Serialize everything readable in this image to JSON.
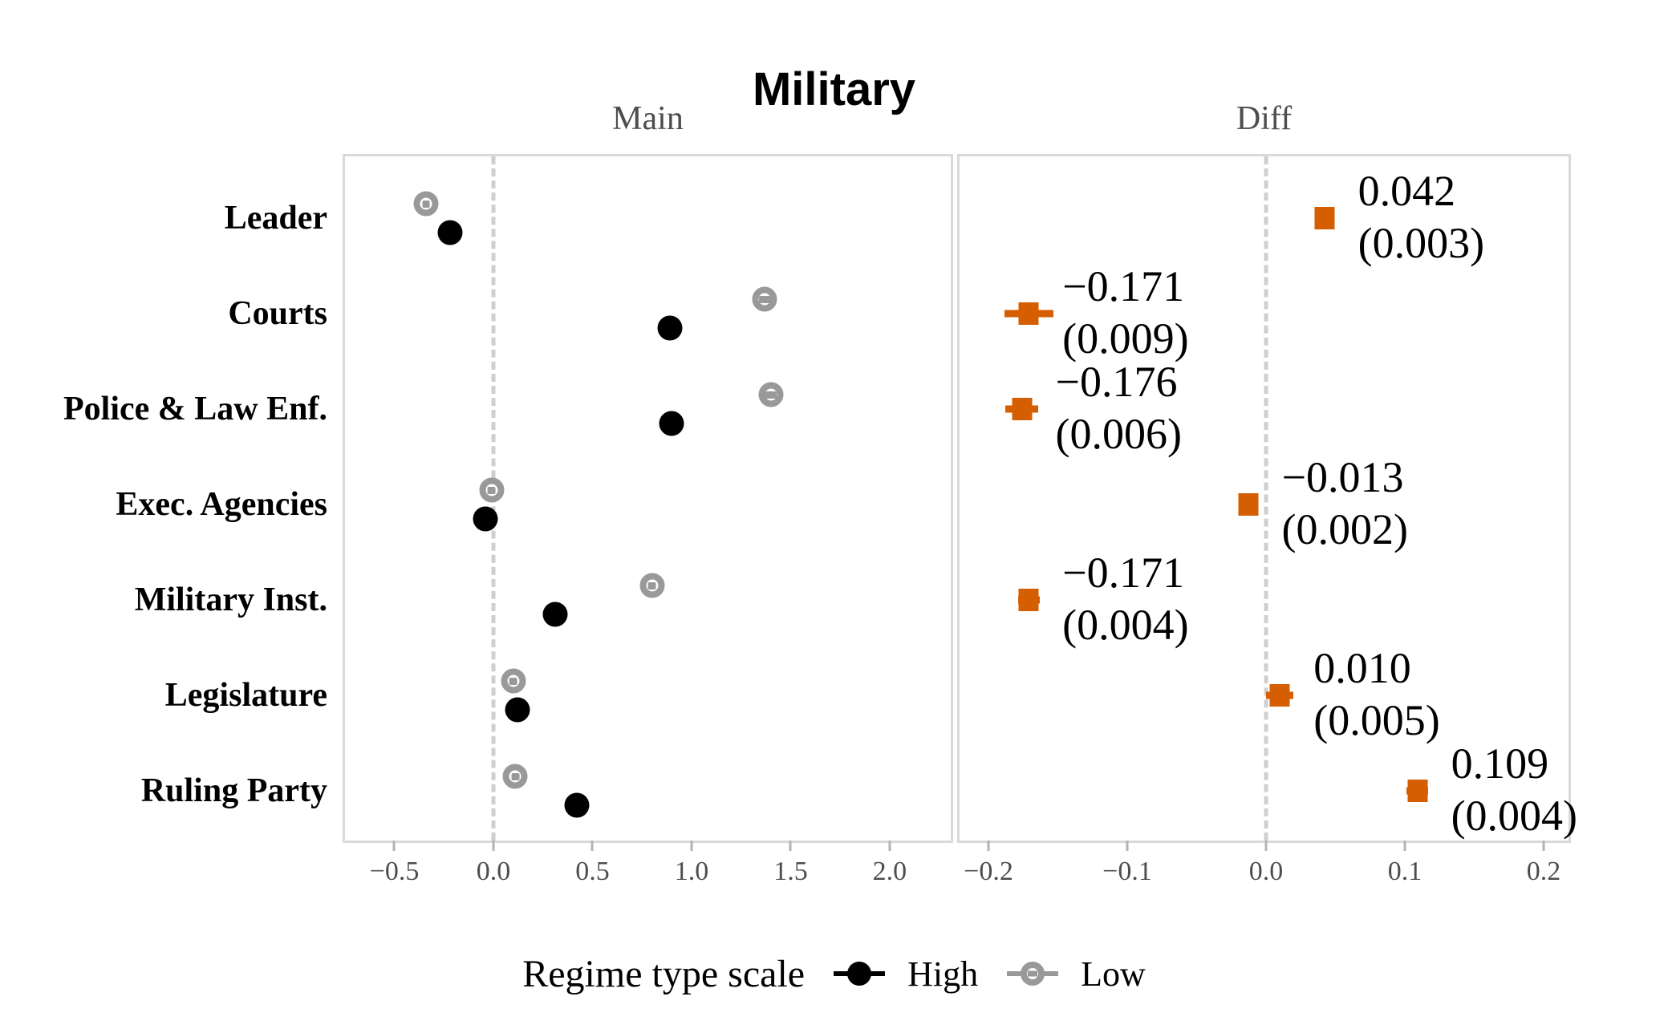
{
  "title": "Military",
  "panels": {
    "main": {
      "facet_label": "Main"
    },
    "diff": {
      "facet_label": "Diff"
    }
  },
  "legend": {
    "title": "Regime type scale",
    "items": [
      {
        "name": "high",
        "label": "High",
        "color": "#000000",
        "style": "filled-circle"
      },
      {
        "name": "low",
        "label": "Low",
        "color": "#999999",
        "style": "open-circle"
      }
    ]
  },
  "colors": {
    "high_point": "#000000",
    "low_point": "#999999",
    "diff_marker": "#d55e00",
    "panel_border": "#d9d9d9",
    "zero_line": "#cfcfcf",
    "facet_text": "#4d4d4d",
    "tick_text": "#4d4d4d"
  },
  "chart_data": {
    "type": "scatter",
    "title": "Military",
    "facets": [
      "Main",
      "Diff"
    ],
    "categories": [
      "Leader",
      "Courts",
      "Police & Law Enf.",
      "Exec. Agencies",
      "Military Inst.",
      "Legislature",
      "Ruling Party"
    ],
    "legend_position": "bottom",
    "main": {
      "xlim": [
        -0.749,
        2.308
      ],
      "zero_line": 0.0,
      "ticks": {
        "values": [
          -0.5,
          0.0,
          0.5,
          1.0,
          1.5,
          2.0
        ],
        "labels": [
          "−0.5",
          "0.0",
          "0.5",
          "1.0",
          "1.5",
          "2.0"
        ]
      },
      "series": [
        {
          "name": "High",
          "color": "#000000",
          "values": [
            -0.22,
            0.89,
            0.9,
            -0.04,
            0.31,
            0.12,
            0.42
          ],
          "ci_half_width": [
            0.02,
            0.02,
            0.02,
            0.02,
            0.02,
            0.02,
            0.02
          ]
        },
        {
          "name": "Low",
          "color": "#999999",
          "values": [
            -0.34,
            1.37,
            1.4,
            -0.01,
            0.8,
            0.1,
            0.11
          ],
          "ci_half_width": [
            0.02,
            0.05,
            0.05,
            0.02,
            0.02,
            0.02,
            0.02
          ]
        }
      ]
    },
    "diff": {
      "xlim": [
        -0.2208,
        0.2179
      ],
      "zero_line": 0.0,
      "ticks": {
        "values": [
          -0.2,
          -0.1,
          0.0,
          0.1,
          0.2
        ],
        "labels": [
          "−0.2",
          "−0.1",
          "0.0",
          "0.1",
          "0.2"
        ]
      },
      "estimates": [
        0.042,
        -0.171,
        -0.176,
        -0.013,
        -0.171,
        0.01,
        0.109
      ],
      "se": [
        0.003,
        0.009,
        0.006,
        0.002,
        0.004,
        0.005,
        0.004
      ],
      "labels": [
        {
          "value": "0.042",
          "se": "(0.003)"
        },
        {
          "value": "−0.171",
          "se": "(0.009)"
        },
        {
          "value": "−0.176",
          "se": "(0.006)"
        },
        {
          "value": "−0.013",
          "se": "(0.002)"
        },
        {
          "value": "−0.171",
          "se": "(0.004)"
        },
        {
          "value": "0.010",
          "se": "(0.005)"
        },
        {
          "value": "0.109",
          "se": "(0.004)"
        }
      ],
      "whisker_multiplier": 1.96,
      "marker_color": "#d55e00"
    }
  }
}
